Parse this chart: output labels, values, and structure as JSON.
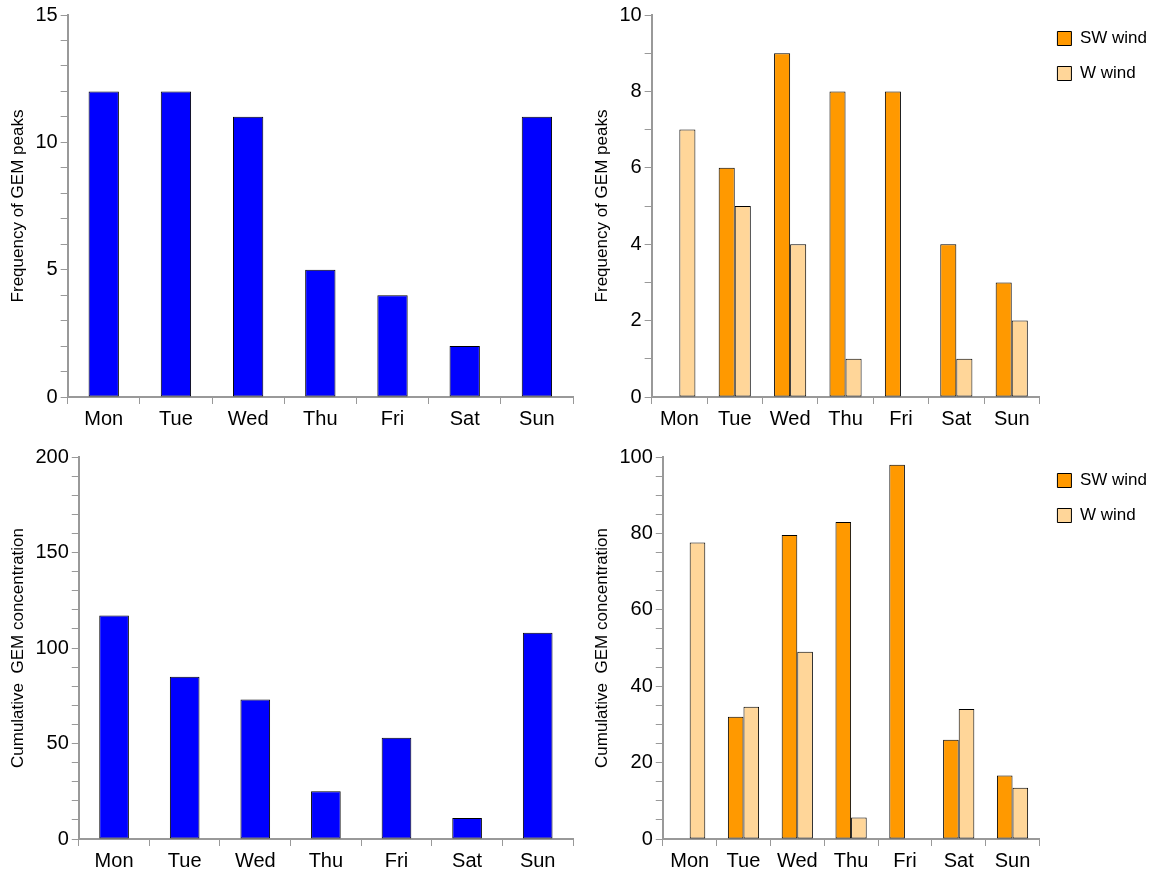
{
  "chart_data": [
    {
      "type": "bar",
      "ylabel": "Frequency of GEM peaks",
      "categories": [
        "Mon",
        "Tue",
        "Wed",
        "Thu",
        "Fri",
        "Sat",
        "Sun"
      ],
      "series": [
        {
          "color": "#0000ff",
          "values": [
            12,
            12,
            11,
            5,
            4,
            2,
            11
          ]
        }
      ],
      "ylim": [
        0,
        15
      ],
      "yticks": [
        0,
        {
          "value": 1,
          "label": null
        },
        {
          "value": 2,
          "label": null
        },
        {
          "value": 3,
          "label": null
        },
        {
          "value": 4,
          "label": null
        },
        5,
        {
          "value": 6,
          "label": null
        },
        {
          "value": 7,
          "label": null
        },
        {
          "value": 8,
          "label": null
        },
        {
          "value": 9,
          "label": null
        },
        10,
        {
          "value": 11,
          "label": null
        },
        {
          "value": 12,
          "label": null
        },
        {
          "value": 13,
          "label": null
        },
        {
          "value": 14,
          "label": null
        },
        15
      ],
      "grid": false,
      "legend": false
    },
    {
      "type": "bar",
      "ylabel": "Frequency of GEM peaks",
      "categories": [
        "Mon",
        "Tue",
        "Wed",
        "Thu",
        "Fri",
        "Sat",
        "Sun"
      ],
      "series": [
        {
          "name": "SW wind",
          "color": "#ff9900",
          "values": [
            null,
            6,
            9,
            8,
            8,
            4,
            3
          ]
        },
        {
          "name": "W wind",
          "color": "#ffd699",
          "values": [
            7,
            5,
            4,
            1,
            null,
            1,
            2
          ]
        }
      ],
      "ylim": [
        0,
        10
      ],
      "yticks": [
        0,
        {
          "value": 1,
          "label": null
        },
        2,
        {
          "value": 3,
          "label": null
        },
        4,
        {
          "value": 5,
          "label": null
        },
        6,
        {
          "value": 7,
          "label": null
        },
        8,
        {
          "value": 9,
          "label": null
        },
        10
      ],
      "grid": false,
      "legend": "top right"
    },
    {
      "type": "bar",
      "ylabel": "Cumulative  GEM concentration",
      "categories": [
        "Mon",
        "Tue",
        "Wed",
        "Thu",
        "Fri",
        "Sat",
        "Sun"
      ],
      "series": [
        {
          "color": "#0000ff",
          "values": [
            117,
            85,
            73,
            25,
            53,
            11,
            108
          ]
        }
      ],
      "ylim": [
        0,
        200
      ],
      "yticks": [
        0,
        {
          "value": 10,
          "label": null
        },
        {
          "value": 20,
          "label": null
        },
        {
          "value": 30,
          "label": null
        },
        {
          "value": 40,
          "label": null
        },
        50,
        {
          "value": 60,
          "label": null
        },
        {
          "value": 70,
          "label": null
        },
        {
          "value": 80,
          "label": null
        },
        {
          "value": 90,
          "label": null
        },
        100,
        {
          "value": 110,
          "label": null
        },
        {
          "value": 120,
          "label": null
        },
        {
          "value": 130,
          "label": null
        },
        {
          "value": 140,
          "label": null
        },
        150,
        {
          "value": 160,
          "label": null
        },
        {
          "value": 170,
          "label": null
        },
        {
          "value": 180,
          "label": null
        },
        {
          "value": 190,
          "label": null
        },
        200
      ],
      "grid": false,
      "legend": false
    },
    {
      "type": "bar",
      "ylabel": "Cumulative  GEM concentration",
      "categories": [
        "Mon",
        "Tue",
        "Wed",
        "Thu",
        "Fri",
        "Sat",
        "Sun"
      ],
      "series": [
        {
          "name": "SW wind",
          "color": "#ff9900",
          "values": [
            null,
            32,
            79.6,
            83,
            98,
            26,
            16.6
          ]
        },
        {
          "name": "W wind",
          "color": "#ffd699",
          "values": [
            77.6,
            34.6,
            49,
            5.6,
            null,
            34,
            13.4
          ]
        }
      ],
      "ylim": [
        0,
        100
      ],
      "yticks": [
        0,
        {
          "value": 5,
          "label": null
        },
        20,
        {
          "value": 15,
          "label": null
        },
        {
          "value": 10,
          "label": null
        },
        40,
        {
          "value": 25,
          "label": null
        },
        {
          "value": 30,
          "label": null
        },
        {
          "value": 35,
          "label": null
        },
        60,
        {
          "value": 45,
          "label": null
        },
        {
          "value": 50,
          "label": null
        },
        {
          "value": 55,
          "label": null
        },
        80,
        {
          "value": 65,
          "label": null
        },
        {
          "value": 70,
          "label": null
        },
        {
          "value": 75,
          "label": null
        },
        100,
        {
          "value": 85,
          "label": null
        },
        {
          "value": 90,
          "label": null
        },
        {
          "value": 95,
          "label": null
        }
      ],
      "grid": false,
      "legend": "top right"
    }
  ]
}
